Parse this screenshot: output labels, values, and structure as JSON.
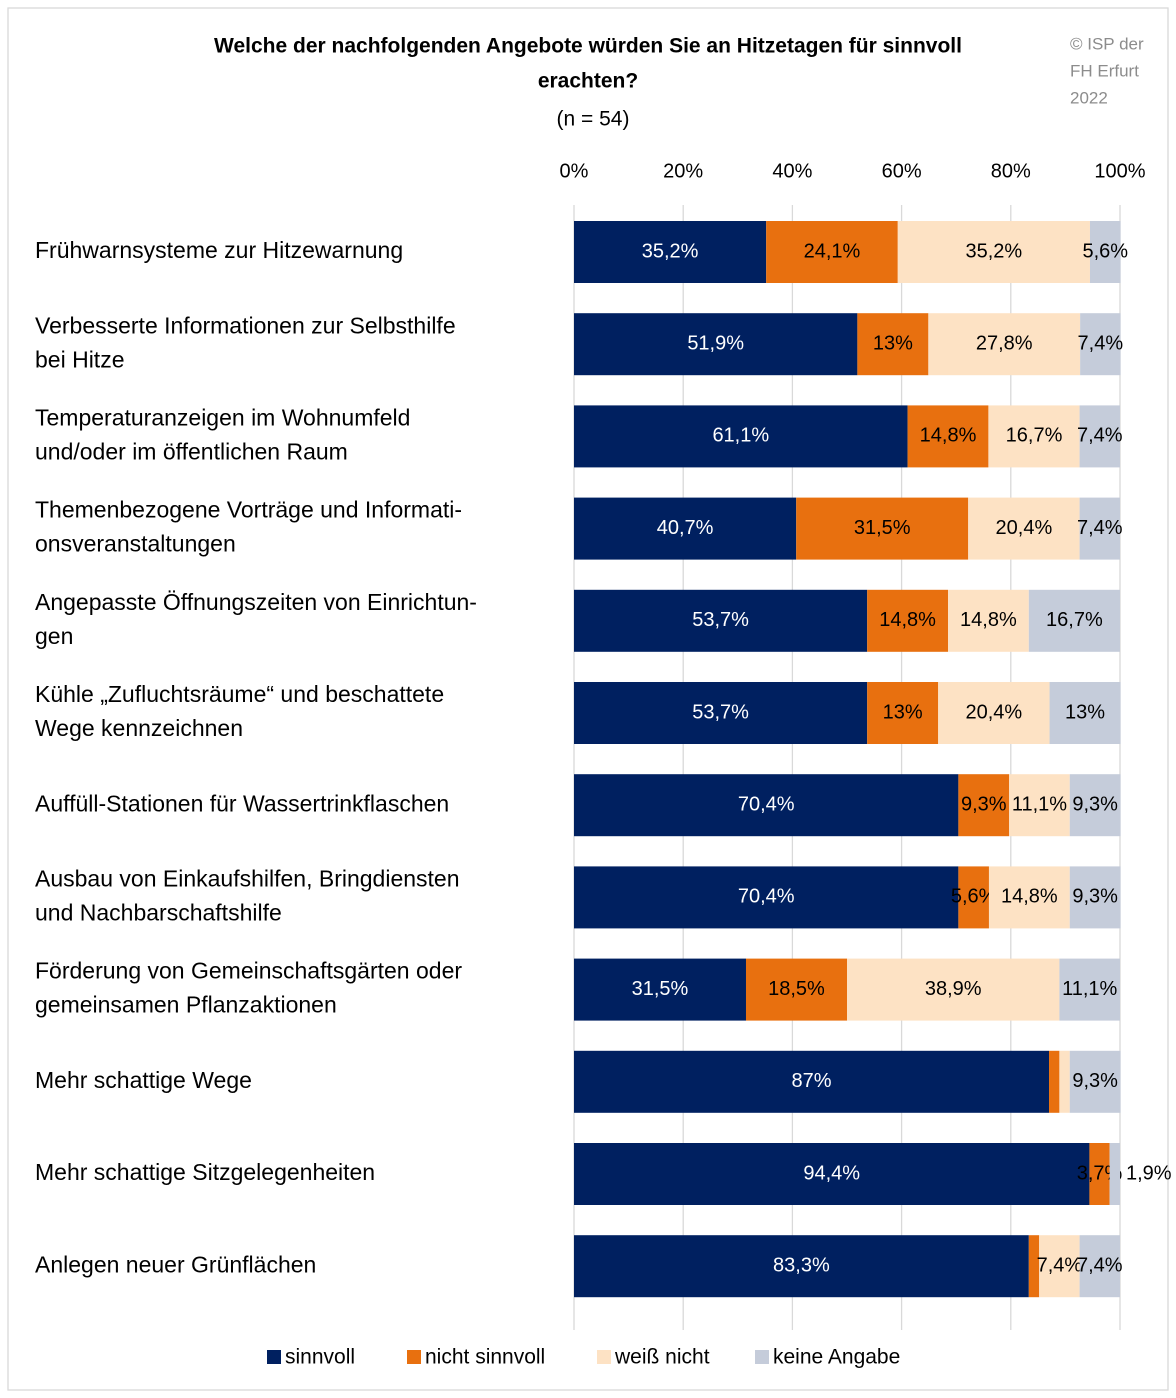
{
  "chart_data": {
    "type": "stacked_barh",
    "title": [
      "Welche der nachfolgenden Angebote würden Sie an Hitzetagen für sinnvoll",
      "erachten?"
    ],
    "subtitle": "(n = 54)",
    "note": [
      "© ISP der",
      "FH Erfurt",
      "2022"
    ],
    "categories": [
      [
        "Frühwarnsysteme zur Hitzewarnung"
      ],
      [
        "Verbesserte Informationen zur Selbsthilfe",
        "bei Hitze"
      ],
      [
        "Temperaturanzeigen im Wohnumfeld",
        "und/oder im öffentlichen Raum"
      ],
      [
        "Themenbezogene Vorträge und Informati-",
        "onsveranstaltungen"
      ],
      [
        "Angepasste Öffnungszeiten von Einrichtun-",
        "gen"
      ],
      [
        "Kühle „Zufluchtsräume“ und beschattete",
        "Wege kennzeichnen"
      ],
      [
        "Auffüll-Stationen für Wassertrinkflaschen"
      ],
      [
        "Ausbau von Einkaufshilfen, Bringdiensten",
        "und Nachbarschaftshilfe"
      ],
      [
        "Förderung von Gemeinschaftsgärten oder",
        "gemeinsamen Pflanzaktionen"
      ],
      [
        "Mehr schattige Wege"
      ],
      [
        "Mehr schattige Sitzgelegenheiten"
      ],
      [
        "Anlegen neuer Grünflächen"
      ]
    ],
    "series": [
      {
        "name": "sinnvoll",
        "color": "#002060",
        "values": [
          35.2,
          51.9,
          61.1,
          40.7,
          53.7,
          53.7,
          70.4,
          70.4,
          31.5,
          87,
          94.4,
          83.3
        ],
        "value_labels": [
          "35,2%",
          "51,9%",
          "61,1%",
          "40,7%",
          "53,7%",
          "53,7%",
          "70,4%",
          "70,4%",
          "31,5%",
          "87%",
          "94,4%",
          "83,3%"
        ]
      },
      {
        "name": "nicht sinnvoll",
        "color": "#E8700F",
        "values": [
          24.1,
          13,
          14.8,
          31.5,
          14.8,
          13,
          9.3,
          5.6,
          18.5,
          1.9,
          3.7,
          1.9
        ],
        "value_labels": [
          "24,1%",
          "13%",
          "14,8%",
          "31,5%",
          "14,8%",
          "13%",
          "9,3%",
          "5,6%",
          "18,5%",
          null,
          "3,7%",
          null
        ]
      },
      {
        "name": "weiß nicht",
        "color": "#FDE2C4",
        "values": [
          35.2,
          27.8,
          16.7,
          20.4,
          14.8,
          20.4,
          11.1,
          14.8,
          38.9,
          1.9,
          0,
          7.4
        ],
        "value_labels": [
          "35,2%",
          "27,8%",
          "16,7%",
          "20,4%",
          "14,8%",
          "20,4%",
          "11,1%",
          "14,8%",
          "38,9%",
          null,
          null,
          "7,4%"
        ]
      },
      {
        "name": "keine Angabe",
        "color": "#C5CCDA",
        "values": [
          5.6,
          7.4,
          7.4,
          7.4,
          16.7,
          13,
          9.3,
          9.3,
          11.1,
          9.3,
          1.9,
          7.4
        ],
        "value_labels": [
          "5,6%",
          "7,4%",
          "7,4%",
          "7,4%",
          "16,7%",
          "13%",
          "9,3%",
          "9,3%",
          "11,1%",
          "9,3%",
          "1,9%",
          "7,4%"
        ]
      }
    ],
    "xlim": [
      0,
      100
    ],
    "xticks": [
      {
        "value": 0,
        "label": "0%"
      },
      {
        "value": 20,
        "label": "20%"
      },
      {
        "value": 40,
        "label": "40%"
      },
      {
        "value": 60,
        "label": "60%"
      },
      {
        "value": 80,
        "label": "80%"
      },
      {
        "value": 100,
        "label": "100%"
      }
    ],
    "grid": true,
    "legend": "bottom"
  }
}
